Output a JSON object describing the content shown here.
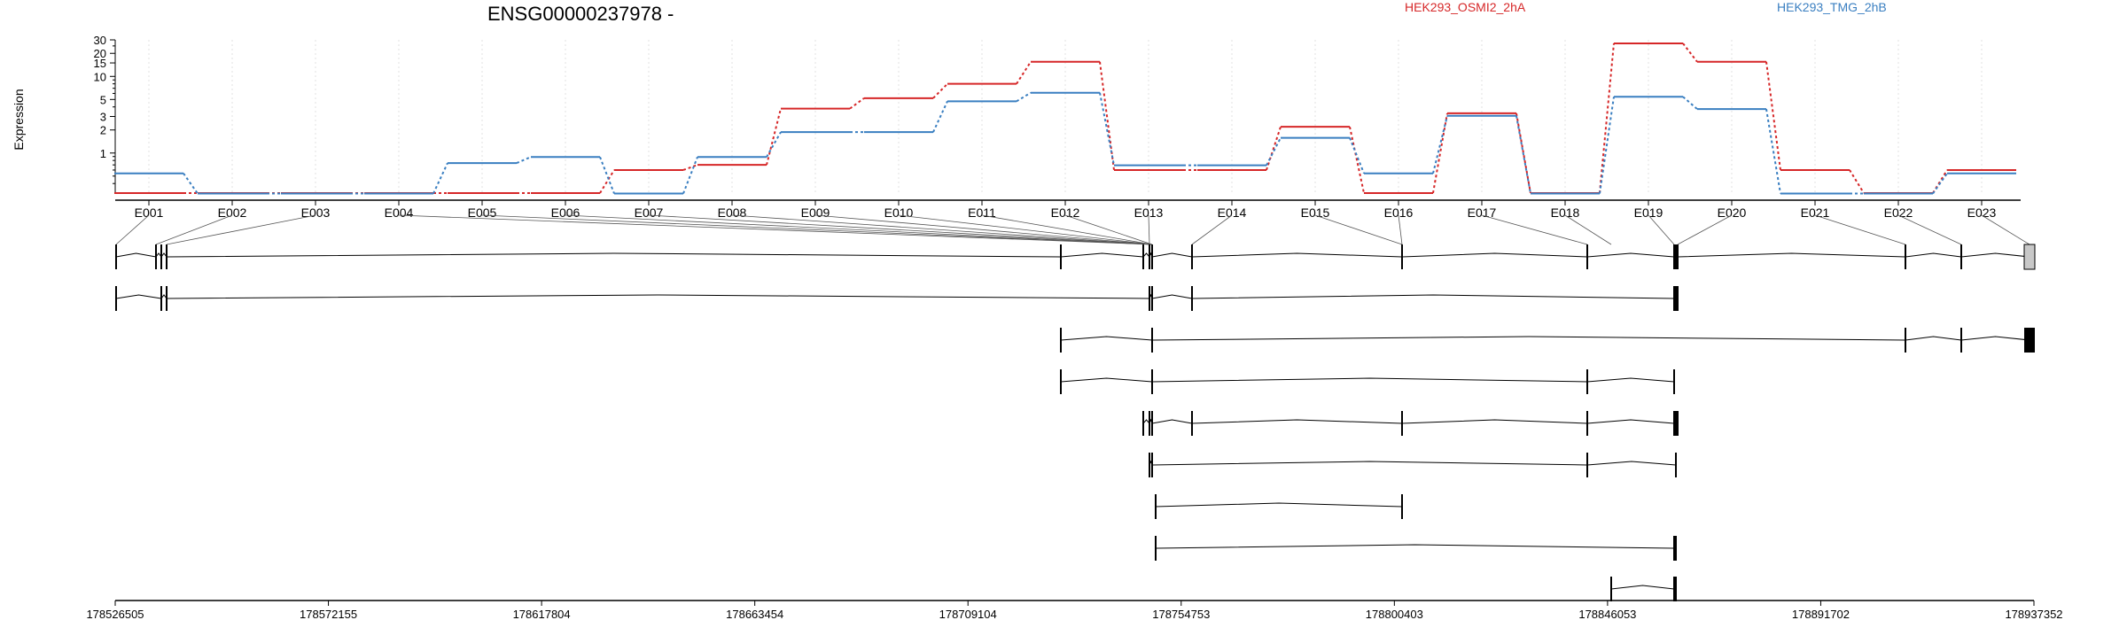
{
  "colors": {
    "series_1": "#d62728",
    "series_2": "#3a7fc1",
    "axis": "#000000",
    "grid": "#e0e0e0",
    "box_gray": "#c8c8c8",
    "box_black": "#000000"
  },
  "chart_data": {
    "type": "line",
    "title": "ENSG00000237978 -",
    "ylabel": "Expression",
    "yscale": "log",
    "yticks": [
      1,
      2,
      3,
      5,
      10,
      15,
      20,
      30
    ],
    "ytick_labels": [
      "1",
      "2",
      "3",
      "5",
      "10",
      "15",
      "20",
      "30"
    ],
    "grid": true,
    "legend_position": "top",
    "categories": [
      "E001",
      "E002",
      "E003",
      "E004",
      "E005",
      "E006",
      "E007",
      "E008",
      "E009",
      "E010",
      "E011",
      "E012",
      "E013",
      "E014",
      "E015",
      "E016",
      "E017",
      "E018",
      "E019",
      "E020",
      "E021",
      "E022",
      "E023"
    ],
    "series": [
      {
        "name": "HEK293_OSMI2_2hA",
        "color": "#d62728",
        "values": [
          0.3,
          0.3,
          0.3,
          0.3,
          0.3,
          0.3,
          0.6,
          0.7,
          3.8,
          5.2,
          8.0,
          15.5,
          0.6,
          0.6,
          2.2,
          0.3,
          3.3,
          0.3,
          27,
          15.5,
          0.6,
          0.3,
          0.6
        ]
      },
      {
        "name": "HEK293_TMG_2hB",
        "color": "#3a7fc1",
        "values": [
          0.55,
          0.3,
          0.3,
          0.3,
          0.75,
          0.9,
          0.3,
          0.9,
          1.9,
          1.9,
          4.8,
          6.2,
          0.7,
          0.7,
          1.6,
          0.55,
          3.1,
          0.3,
          5.5,
          3.8,
          0.3,
          0.3,
          0.55
        ]
      }
    ]
  },
  "gene_model": {
    "genomic_coordinates": [
      "178526505",
      "178572155",
      "178617804",
      "178663454",
      "178709104",
      "178754753",
      "178800403",
      "178846053",
      "178891702",
      "178937352"
    ]
  }
}
